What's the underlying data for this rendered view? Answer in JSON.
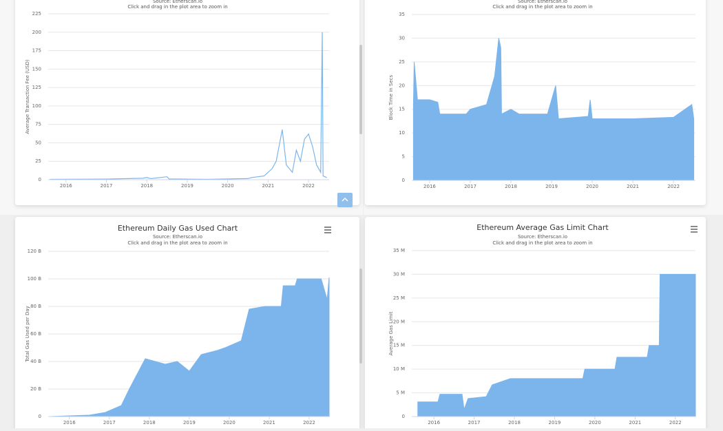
{
  "chart_data": [
    {
      "type": "line",
      "subtitle": "Source: Etherscan.io",
      "note": "Click and drag in the plot area to zoom in",
      "ylabel": "Average Transaction Fee (USD)",
      "color": "#7cb5ec",
      "x": [
        2015.6,
        2017.0,
        2017.9,
        2018.0,
        2018.1,
        2018.5,
        2018.55,
        2019.5,
        2020.5,
        2020.6,
        2020.9,
        2021.1,
        2021.2,
        2021.35,
        2021.45,
        2021.6,
        2021.7,
        2021.8,
        2021.9,
        2022.0,
        2022.1,
        2022.2,
        2022.3,
        2022.34,
        2022.36,
        2022.45
      ],
      "values": [
        0.5,
        0.8,
        2,
        3,
        1.5,
        4,
        1,
        0.5,
        1.5,
        3,
        5,
        15,
        25,
        68,
        20,
        10,
        40,
        25,
        55,
        62,
        45,
        20,
        10,
        200,
        5,
        3
      ],
      "xlim": [
        2015.56,
        2022.51
      ],
      "xticks": [
        2016,
        2017,
        2018,
        2019,
        2020,
        2021,
        2022
      ],
      "ylim": [
        0,
        225
      ],
      "yticks": [
        0,
        25,
        50,
        75,
        100,
        125,
        150,
        175,
        200,
        225
      ],
      "grid": true
    },
    {
      "type": "area",
      "subtitle": "Source: Etherscan.io",
      "note": "Click and drag in the plot area to zoom in",
      "ylabel": "Block Time in Secs",
      "color": "#7cb5ec",
      "x": [
        2015.6,
        2015.62,
        2015.7,
        2016.0,
        2016.2,
        2016.25,
        2016.9,
        2017.0,
        2017.4,
        2017.6,
        2017.7,
        2017.75,
        2017.77,
        2018.0,
        2018.2,
        2018.9,
        2019.1,
        2019.17,
        2019.9,
        2019.95,
        2020.0,
        2021.0,
        2022.0,
        2022.45,
        2022.5
      ],
      "values": [
        16,
        25,
        17,
        17,
        16.5,
        14,
        14,
        15,
        16,
        22,
        30,
        28,
        14,
        15,
        14,
        14,
        20,
        13,
        13.5,
        17,
        13,
        13,
        13.3,
        16,
        13
      ],
      "xlim": [
        2015.56,
        2022.54
      ],
      "xticks": [
        2016,
        2017,
        2018,
        2019,
        2020,
        2021,
        2022
      ],
      "ylim": [
        0,
        35
      ],
      "yticks": [
        0,
        5,
        10,
        15,
        20,
        25,
        30,
        35
      ],
      "grid": true
    },
    {
      "type": "area",
      "title": "Ethereum Daily Gas Used Chart",
      "subtitle": "Source: Etherscan.io",
      "note": "Click and drag in the plot area to zoom in",
      "ylabel": "Total Gas Used per Day",
      "color": "#7cb5ec",
      "x": [
        2015.5,
        2016.5,
        2016.9,
        2017.3,
        2017.5,
        2017.9,
        2018.4,
        2018.7,
        2019.0,
        2019.3,
        2019.7,
        2019.9,
        2020.3,
        2020.5,
        2020.9,
        2021.3,
        2021.35,
        2021.65,
        2021.7,
        2022.3,
        2022.45,
        2022.5
      ],
      "values": [
        0,
        1000000000,
        3000000000,
        8000000000,
        20000000000,
        42000000000,
        38000000000,
        40000000000,
        33000000000,
        45000000000,
        48000000000,
        50000000000,
        55000000000,
        78000000000,
        80000000000,
        80000000000,
        95000000000,
        95000000000,
        100000000000,
        100000000000,
        85000000000,
        101000000000
      ],
      "xlim": [
        2015.47,
        2022.5
      ],
      "xticks": [
        2016,
        2017,
        2018,
        2019,
        2020,
        2021,
        2022
      ],
      "ylim": [
        0,
        120000000000
      ],
      "yticks": [
        0,
        {
          "value": 20000000000,
          "label": "20 B"
        },
        {
          "value": 40000000000,
          "label": "40 B"
        },
        {
          "value": 60000000000,
          "label": "60 B"
        },
        {
          "value": 80000000000,
          "label": "80 B"
        },
        {
          "value": 100000000000,
          "label": "100 B"
        },
        {
          "value": 120000000000,
          "label": "120 B"
        }
      ],
      "grid": true
    },
    {
      "type": "area",
      "title": "Ethereum Average Gas Limit Chart",
      "subtitle": "Source: Etherscan.io",
      "note": "Click and drag in the plot area to zoom in",
      "ylabel": "Average Gas Limit",
      "color": "#7cb5ec",
      "x": [
        2015.6,
        2016.1,
        2016.15,
        2016.7,
        2016.75,
        2016.85,
        2017.3,
        2017.45,
        2017.9,
        2019.7,
        2019.75,
        2020.5,
        2020.55,
        2021.3,
        2021.35,
        2021.6,
        2021.62,
        2022.5
      ],
      "values": [
        3100000,
        3100000,
        4700000,
        4700000,
        1500000,
        3800000,
        4200000,
        6700000,
        8000000,
        8000000,
        10000000,
        10000000,
        12500000,
        12500000,
        15000000,
        15000000,
        30000000,
        30000000
      ],
      "xlim": [
        2015.45,
        2022.5
      ],
      "xticks": [
        2016,
        2017,
        2018,
        2019,
        2020,
        2021,
        2022
      ],
      "ylim": [
        0,
        35000000
      ],
      "yticks": [
        0,
        {
          "value": 5000000,
          "label": "5 M"
        },
        {
          "value": 10000000,
          "label": "10 M"
        },
        {
          "value": 15000000,
          "label": "15 M"
        },
        {
          "value": 20000000,
          "label": "20 M"
        },
        {
          "value": 25000000,
          "label": "25 M"
        },
        {
          "value": 30000000,
          "label": "30 M"
        },
        {
          "value": 35000000,
          "label": "35 M"
        }
      ],
      "grid": true
    }
  ]
}
